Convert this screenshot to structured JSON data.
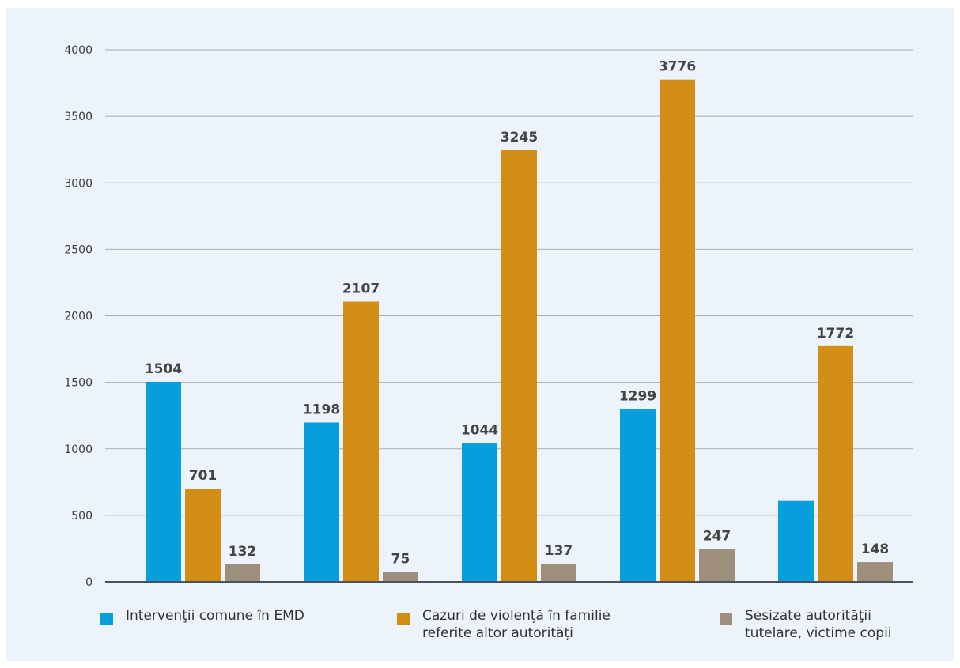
{
  "chart_data": {
    "type": "bar",
    "categories": [
      "",
      "",
      "",
      "",
      ""
    ],
    "series": [
      {
        "name": "Intervenţii comune în EMD",
        "color": "#069fdb",
        "values": [
          1504,
          1198,
          1044,
          1299,
          608
        ],
        "labels": [
          "1504",
          "1198",
          "1044",
          "1299",
          ""
        ]
      },
      {
        "name": "Cazuri de violență în familie\nreferite altor autorități",
        "color": "#d18d14",
        "values": [
          701,
          2107,
          3245,
          3776,
          1772
        ],
        "labels": [
          "701",
          "2107",
          "3245",
          "3776",
          "1772"
        ]
      },
      {
        "name": "Sesizate autorităţii\ntutelare, victime copii",
        "color": "#9e8f7c",
        "values": [
          132,
          75,
          137,
          247,
          148
        ],
        "labels": [
          "132",
          "75",
          "137",
          "247",
          "148"
        ]
      }
    ],
    "y_ticks": [
      "0",
      "500",
      "1000",
      "1500",
      "2000",
      "2500",
      "3000",
      "3500",
      "4000"
    ],
    "ylim": [
      0,
      4000
    ],
    "grid": true,
    "legend_position": "bottom",
    "title": "",
    "xlabel": "",
    "ylabel": ""
  }
}
